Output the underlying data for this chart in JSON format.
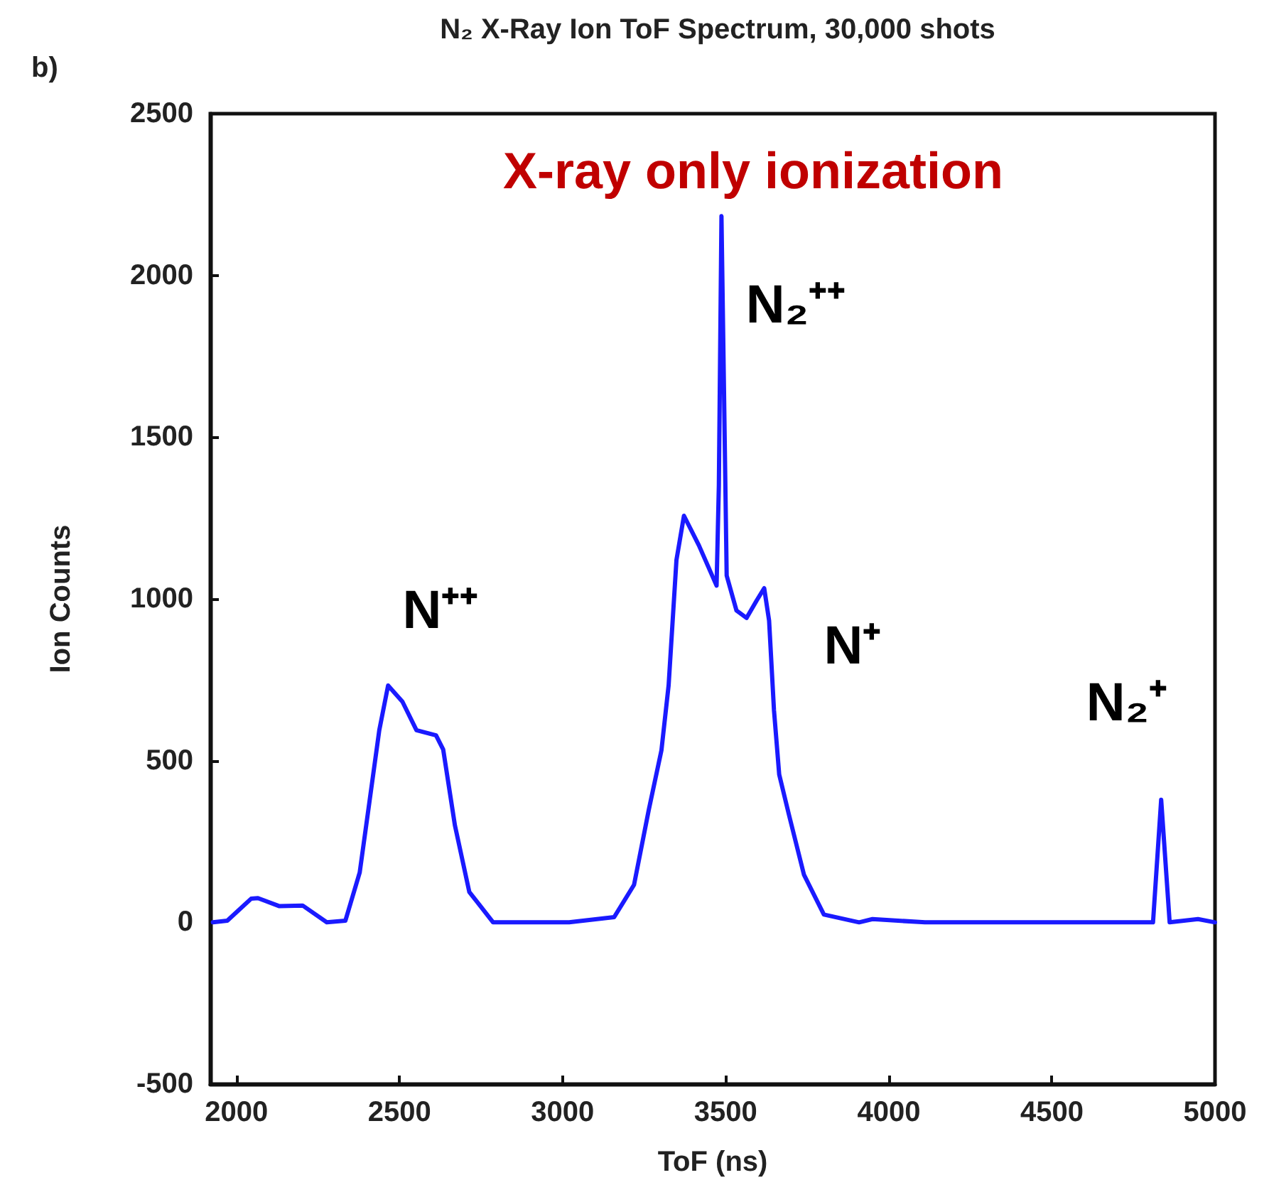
{
  "chart_data": {
    "type": "line",
    "title": "N₂ X-Ray Ion ToF Spectrum, 30,000 shots",
    "xlabel": "ToF (ns)",
    "ylabel": "Ion Counts",
    "annotations": [
      "b)",
      "X-ray only ionization",
      "N⁺⁺",
      "N₂⁺⁺",
      "N⁺",
      "N₂⁺"
    ],
    "series": [
      {
        "color": "#1a1aff",
        "x": [
          1928,
          1972,
          2045,
          2066,
          2132,
          2203,
          2277,
          2334,
          2378,
          2408,
          2438,
          2465,
          2509,
          2552,
          2612,
          2634,
          2670,
          2714,
          2787,
          3020,
          3158,
          3219,
          3264,
          3303,
          3325,
          3349,
          3372,
          3418,
          3472,
          3479,
          3487,
          3503,
          3533,
          3564,
          3595,
          3618,
          3633,
          3648,
          3664,
          3694,
          3740,
          3801,
          3909,
          3950,
          4111,
          4810,
          4835,
          4861,
          4948,
          5000
        ],
        "values": [
          0,
          5,
          73,
          75,
          50,
          52,
          0,
          5,
          154,
          374,
          594,
          732,
          682,
          594,
          578,
          534,
          299,
          94,
          0,
          0,
          16,
          116,
          347,
          532,
          733,
          1120,
          1257,
          1165,
          1041,
          1350,
          2183,
          1072,
          964,
          941,
          995,
          1033,
          933,
          656,
          457,
          332,
          147,
          24,
          0,
          10,
          0,
          0,
          379,
          0,
          10,
          0
        ]
      }
    ],
    "xlim": [
      1920,
      5000
    ],
    "xticks": [
      2000,
      2500,
      3000,
      3500,
      4000,
      4500,
      5000
    ],
    "ylim": [
      -500,
      2500
    ],
    "yticks": [
      -500,
      0,
      500,
      1000,
      1500,
      2000,
      2500
    ],
    "grid": false,
    "marker": "none",
    "line_style": "solid"
  }
}
